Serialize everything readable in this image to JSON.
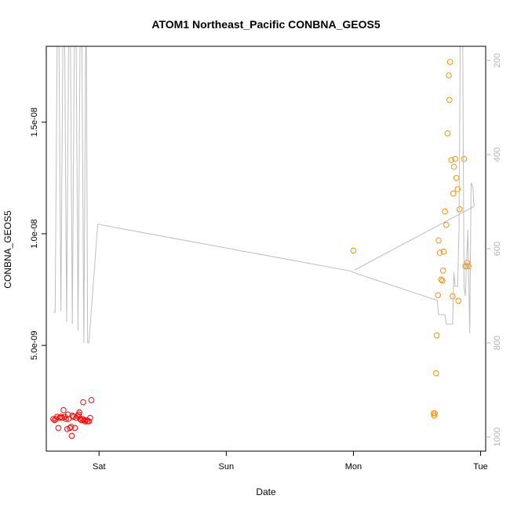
{
  "chart_data": {
    "type": "scatter",
    "title": "ATOM1 Northeast_Pacific CONBNA_GEOS5",
    "xlabel": "Date",
    "ylabel": "CONBNA_GEOS5",
    "x_unit": "days since Fri 00:00",
    "xlim": [
      0.585,
      4.04
    ],
    "ylim": [
      2.6e-10,
      1.84e-08
    ],
    "x_ticks": [
      {
        "value": 1,
        "label": "Sat"
      },
      {
        "value": 2,
        "label": "Sun"
      },
      {
        "value": 3,
        "label": "Mon"
      },
      {
        "value": 4,
        "label": "Tue"
      }
    ],
    "y_ticks": [
      {
        "value": 5e-09,
        "label": "5.0e-09"
      },
      {
        "value": 1e-08,
        "label": "1.0e-08"
      },
      {
        "value": 1.5e-08,
        "label": "1.5e-08"
      }
    ],
    "right_axis": {
      "label": "",
      "lim": [
        1030,
        170
      ],
      "reversed": true,
      "ticks": [
        200,
        400,
        600,
        800,
        1000
      ],
      "color": "#b3b3b3"
    },
    "grid": false,
    "legend": "none",
    "series": [
      {
        "color": "#ff0000",
        "marker": "open-circle",
        "points": [
          [
            0.64,
            1.7e-09
          ],
          [
            0.65,
            1.65e-09
          ],
          [
            0.66,
            1.7e-09
          ],
          [
            0.67,
            1.8e-09
          ],
          [
            0.68,
            1.3e-09
          ],
          [
            0.69,
            1.75e-09
          ],
          [
            0.7,
            1.8e-09
          ],
          [
            0.71,
            1.75e-09
          ],
          [
            0.72,
            2.1e-09
          ],
          [
            0.73,
            1.8e-09
          ],
          [
            0.74,
            1.7e-09
          ],
          [
            0.75,
            1.25e-09
          ],
          [
            0.755,
            1.9e-09
          ],
          [
            0.76,
            1.7e-09
          ],
          [
            0.77,
            1.3e-09
          ],
          [
            0.78,
            1.35e-09
          ],
          [
            0.785,
            9.5e-10
          ],
          [
            0.79,
            1.85e-09
          ],
          [
            0.8,
            1.8e-09
          ],
          [
            0.81,
            1.3e-09
          ],
          [
            0.82,
            1.75e-09
          ],
          [
            0.83,
            1.85e-09
          ],
          [
            0.84,
            1.9e-09
          ],
          [
            0.845,
            2e-09
          ],
          [
            0.85,
            1.7e-09
          ],
          [
            0.86,
            1.65e-09
          ],
          [
            0.87,
            1.7e-09
          ],
          [
            0.875,
            2.45e-09
          ],
          [
            0.88,
            1.65e-09
          ],
          [
            0.89,
            1.6e-09
          ],
          [
            0.9,
            1.65e-09
          ],
          [
            0.91,
            1.6e-09
          ],
          [
            0.92,
            1.6e-09
          ],
          [
            0.93,
            1.75e-09
          ],
          [
            0.94,
            2.55e-09
          ]
        ]
      },
      {
        "color": "#ff8c00",
        "marker": "open-circle",
        "points": [
          [
            3.0,
            9.25e-09
          ],
          [
            3.63,
            1.95e-09
          ],
          [
            3.635,
            1.85e-09
          ],
          [
            3.64,
            1.95e-09
          ],
          [
            3.65,
            3.75e-09
          ],
          [
            3.655,
            5.45e-09
          ],
          [
            3.665,
            7.25e-09
          ],
          [
            3.67,
            9.7e-09
          ],
          [
            3.68,
            9.15e-09
          ],
          [
            3.69,
            7.95e-09
          ],
          [
            3.7,
            7.9e-09
          ],
          [
            3.705,
            8.35e-09
          ],
          [
            3.71,
            9.2e-09
          ],
          [
            3.72,
            1.1e-08
          ],
          [
            3.73,
            1.04e-08
          ],
          [
            3.74,
            1.45e-08
          ],
          [
            3.75,
            1.71e-08
          ],
          [
            3.755,
            1.6e-08
          ],
          [
            3.76,
            1.77e-08
          ],
          [
            3.77,
            1.33e-08
          ],
          [
            3.78,
            7.2e-09
          ],
          [
            3.785,
            1.18e-08
          ],
          [
            3.79,
            1.3e-08
          ],
          [
            3.8,
            1.335e-08
          ],
          [
            3.81,
            1.25e-08
          ],
          [
            3.82,
            1.2e-08
          ],
          [
            3.825,
            7e-09
          ],
          [
            3.835,
            1.11e-08
          ],
          [
            3.87,
            1.335e-08
          ],
          [
            3.88,
            8.55e-09
          ],
          [
            3.89,
            8.55e-09
          ],
          [
            3.895,
            8.7e-09
          ],
          [
            3.905,
            8.55e-09
          ]
        ]
      },
      {
        "color": "#bebebe",
        "marker": "line",
        "axis": "right",
        "points": [
          [
            0.64,
            735
          ],
          [
            0.655,
            735
          ],
          [
            0.67,
            170
          ],
          [
            0.685,
            170
          ],
          [
            0.7,
            732
          ],
          [
            0.715,
            170
          ],
          [
            0.73,
            170
          ],
          [
            0.745,
            755
          ],
          [
            0.76,
            170
          ],
          [
            0.775,
            170
          ],
          [
            0.79,
            760
          ],
          [
            0.805,
            170
          ],
          [
            0.82,
            170
          ],
          [
            0.835,
            775
          ],
          [
            0.85,
            170
          ],
          [
            0.865,
            170
          ],
          [
            0.88,
            800
          ],
          [
            0.895,
            170
          ],
          [
            0.9,
            170
          ],
          [
            0.91,
            800
          ],
          [
            0.92,
            800
          ],
          [
            0.99,
            548
          ],
          [
            2.99,
            648
          ],
          [
            2.995,
            650
          ],
          [
            3.66,
            710
          ],
          [
            3.67,
            740
          ],
          [
            3.72,
            740
          ],
          [
            3.73,
            760
          ],
          [
            3.78,
            760
          ],
          [
            3.79,
            650
          ],
          [
            3.8,
            680
          ],
          [
            3.82,
            680
          ],
          [
            3.83,
            560
          ],
          [
            3.84,
            170
          ],
          [
            3.86,
            170
          ],
          [
            3.87,
            680
          ],
          [
            3.88,
            700
          ],
          [
            3.9,
            560
          ],
          [
            3.915,
            780
          ],
          [
            3.925,
            460
          ],
          [
            3.94,
            470
          ],
          [
            3.945,
            500
          ],
          [
            3.95,
            510
          ],
          [
            3.01,
            645
          ]
        ]
      }
    ]
  }
}
